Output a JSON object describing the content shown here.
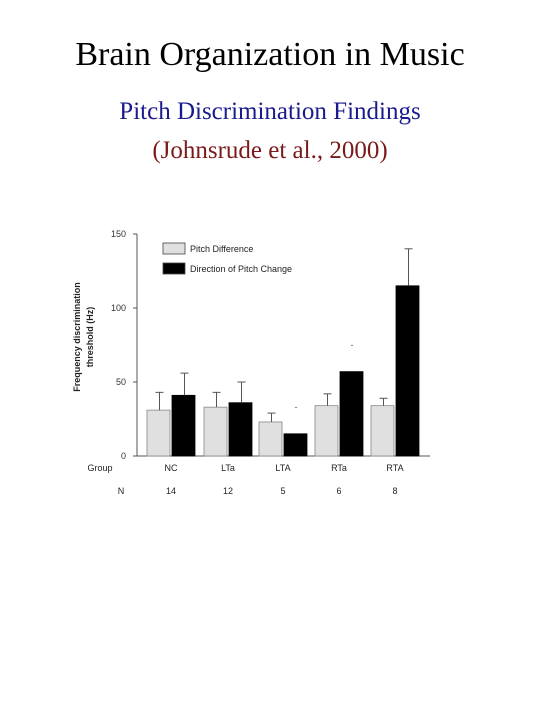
{
  "title": "Brain Organization in Music",
  "subtitle": "Pitch Discrimination Findings",
  "citation": "(Johnsrude et al., 2000)",
  "colors": {
    "subtitle": "#1a1a8c",
    "citation": "#7a1a1a",
    "pitch_difference": "#e0e0e0",
    "direction_of_pitch_change": "#000000"
  },
  "chart_data": {
    "type": "bar",
    "ylabel": "Frequency discrimination threshold (Hz)",
    "ylim": [
      0,
      150
    ],
    "yticks": [
      0,
      50,
      100,
      150
    ],
    "grid": false,
    "legend_position": "top-left",
    "row_labels": {
      "group": "Group",
      "n": "N"
    },
    "categories": [
      "NC",
      "LTa",
      "LTA",
      "RTa",
      "RTA"
    ],
    "n_values": [
      "14",
      "12",
      "5",
      "6",
      "8"
    ],
    "series": [
      {
        "name": "Pitch Difference",
        "values": [
          31,
          33,
          23,
          34,
          34
        ],
        "error": [
          12,
          10,
          6,
          8,
          5
        ]
      },
      {
        "name": "Direction of Pitch Change",
        "values": [
          41,
          36,
          15,
          57,
          115
        ],
        "error": [
          15,
          14,
          0,
          0,
          25
        ]
      }
    ],
    "annotations": [
      "-",
      "-"
    ]
  }
}
